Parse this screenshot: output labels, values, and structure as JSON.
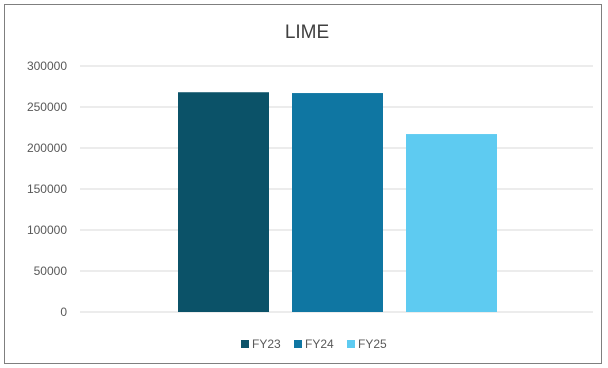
{
  "chart_data": {
    "type": "bar",
    "title": "LIME",
    "xlabel": "",
    "ylabel": "",
    "ylim": [
      0,
      300000
    ],
    "yticks": [
      0,
      50000,
      100000,
      150000,
      200000,
      250000,
      300000
    ],
    "grid": true,
    "legend_position": "bottom",
    "series": [
      {
        "name": "FY23",
        "color": "#0b5268",
        "values": [
          268000
        ]
      },
      {
        "name": "FY24",
        "color": "#0f76a2",
        "values": [
          267000
        ]
      },
      {
        "name": "FY25",
        "color": "#5ecbf1",
        "values": [
          217000
        ]
      }
    ]
  }
}
